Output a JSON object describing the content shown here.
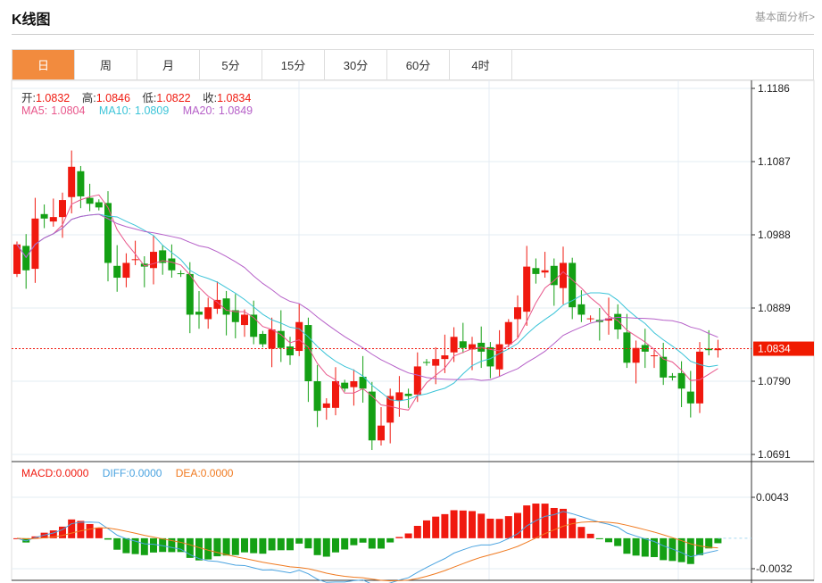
{
  "header": {
    "title": "K线图",
    "link": "基本面分析>"
  },
  "tabs": [
    "日",
    "周",
    "月",
    "5分",
    "15分",
    "30分",
    "60分",
    "4时"
  ],
  "active_tab": 0,
  "ohlc": {
    "open_label": "开:",
    "open": "1.0832",
    "high_label": "高:",
    "high": "1.0846",
    "low_label": "低:",
    "low": "1.0822",
    "close_label": "收:",
    "close": "1.0834"
  },
  "ma": {
    "ma5_label": "MA5:",
    "ma5": "1.0804",
    "ma10_label": "MA10:",
    "ma10": "1.0809",
    "ma20_label": "MA20:",
    "ma20": "1.0849"
  },
  "macd_legend": {
    "macd_label": "MACD:",
    "macd": "0.0000",
    "diff_label": "DIFF:",
    "diff": "0.0000",
    "dea_label": "DEA:",
    "dea": "0.0000"
  },
  "colors": {
    "up": "#f0190f",
    "down": "#14a014",
    "ma5": "#e8558a",
    "ma10": "#3cc4d8",
    "ma20": "#b660c8",
    "diff": "#4aa3e0",
    "dea": "#f07a20",
    "tab_active": "#f28b3e"
  },
  "chart_data": {
    "type": "candlestick",
    "price_ticks": [
      "1.1186",
      "1.1087",
      "1.0988",
      "1.0889",
      "1.0790",
      "1.0691"
    ],
    "price_range": [
      1.0691,
      1.1186
    ],
    "current_price": "1.0834",
    "macd_ticks": [
      "0.0043",
      "-0.0032"
    ],
    "macd_range": [
      -0.0032,
      0.0043
    ],
    "closes": [
      1.0975,
      1.094,
      1.101,
      1.101,
      1.1012,
      1.1035,
      1.108,
      1.104,
      1.103,
      1.1025,
      1.095,
      1.093,
      1.095,
      1.0955,
      1.0945,
      1.0965,
      1.095,
      1.094,
      1.0935,
      1.088,
      1.088,
      1.089,
      1.09,
      1.088,
      1.087,
      1.088,
      1.085,
      1.084,
      1.086,
      1.0835,
      1.0825,
      1.087,
      1.079,
      1.075,
      1.076,
      1.079,
      1.078,
      1.079,
      1.078,
      1.071,
      1.073,
      1.077,
      1.0775,
      1.077,
      1.081,
      1.0815,
      1.082,
      1.0825,
      1.085,
      1.0835,
      1.084,
      1.083,
      1.081,
      1.084,
      1.087,
      1.089,
      1.0945,
      1.0935,
      1.094,
      1.092,
      1.095,
      1.089,
      1.088,
      1.0875,
      1.087,
      1.0875,
      1.086,
      1.0815,
      1.0835,
      1.083,
      1.0825,
      1.0795,
      1.0795,
      1.078,
      1.076,
      1.083,
      1.0832,
      1.0834
    ]
  }
}
